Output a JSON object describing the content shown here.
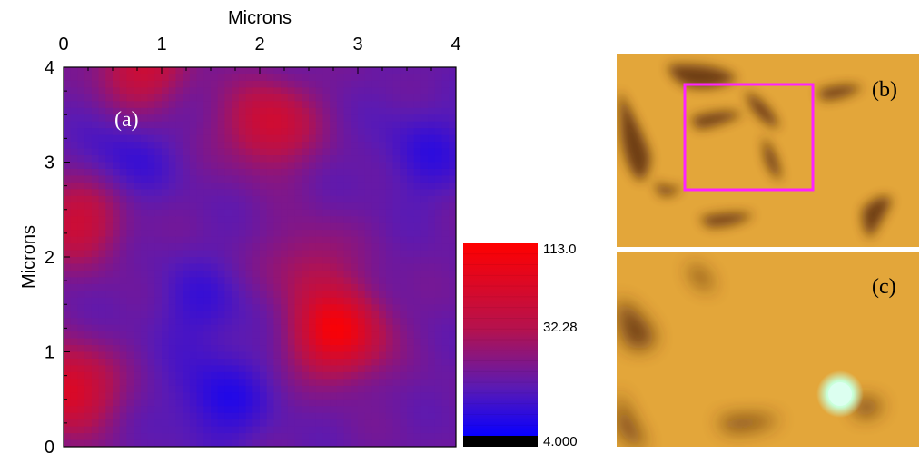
{
  "chart_data": {
    "type": "heatmap",
    "title": "",
    "panel_labels": {
      "map": "(a)",
      "upper_image": "(b)",
      "lower_image": "(c)"
    },
    "x_axis": {
      "label": "Microns",
      "position": "top",
      "range": [
        0,
        4
      ],
      "ticks": [
        "0",
        "1",
        "2",
        "3",
        "4"
      ]
    },
    "y_axis": {
      "label": "Microns",
      "range": [
        0,
        4
      ],
      "ticks": [
        "0",
        "1",
        "2",
        "3",
        "4"
      ]
    },
    "colorbar": {
      "scale": "log",
      "tick_labels": [
        "113.0",
        "32.28",
        "4.000"
      ],
      "range": [
        4.0,
        113.0
      ],
      "colors": {
        "high": "#ff0000",
        "mid": "#c8104a",
        "low": "#0a00ff",
        "below_range": "#000000"
      }
    },
    "field": {
      "background_value": 11,
      "hot_spots": [
        {
          "x": 2.8,
          "y": 1.2,
          "value": 90
        },
        {
          "x": 0.05,
          "y": 0.6,
          "value": 60
        },
        {
          "x": 0.15,
          "y": 2.4,
          "value": 42
        },
        {
          "x": 2.1,
          "y": 3.4,
          "value": 45
        },
        {
          "x": 0.8,
          "y": 4.0,
          "value": 40
        },
        {
          "x": 2.5,
          "y": 1.9,
          "value": 22
        }
      ],
      "cold_spots": [
        {
          "x": 1.6,
          "y": 0.5,
          "value": 5.5
        },
        {
          "x": 0.6,
          "y": 3.0,
          "value": 6.5
        },
        {
          "x": 3.7,
          "y": 3.1,
          "value": 6.5
        },
        {
          "x": 1.4,
          "y": 1.5,
          "value": 7
        }
      ]
    }
  },
  "images": {
    "colors": {
      "background": "#e3a63a",
      "dark_features": "#5a2a10",
      "selection_box": "#ff22ff",
      "bright_spot": "#c8ffd8"
    }
  }
}
